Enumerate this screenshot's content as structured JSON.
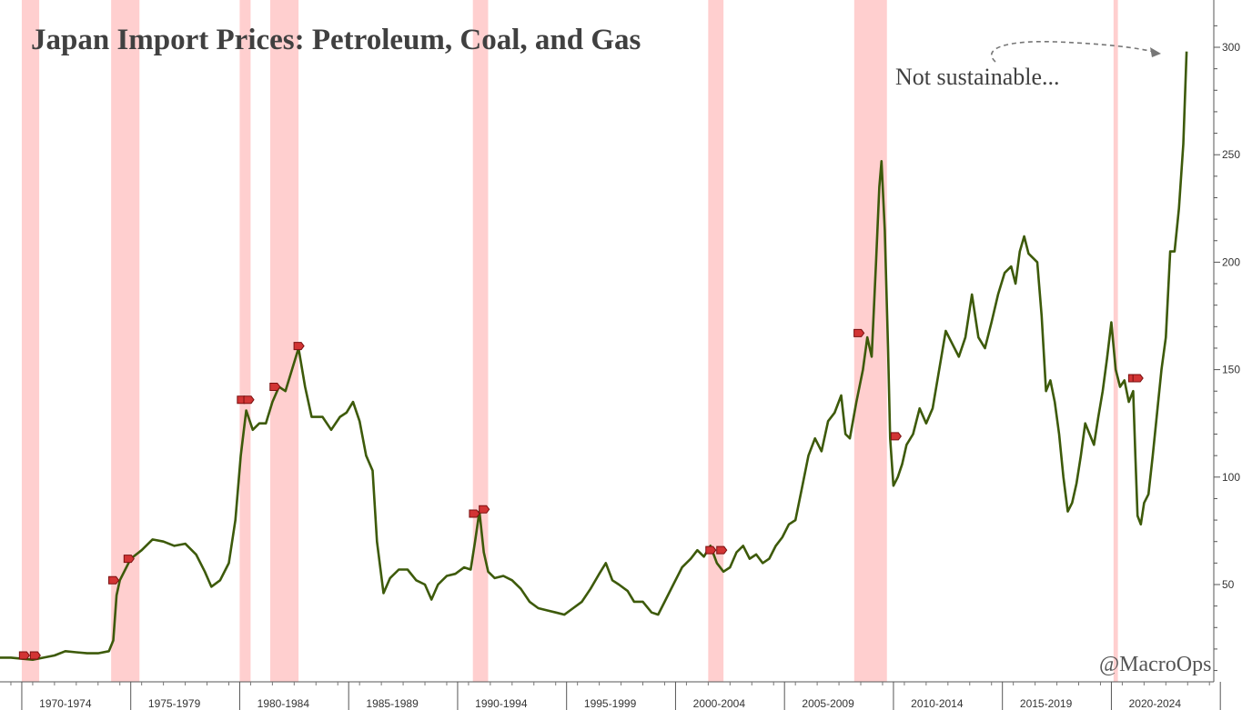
{
  "chart_data": {
    "type": "line",
    "title": "Japan Import Prices: Petroleum, Coal, and Gas",
    "annotation": "Not sustainable...",
    "credit": "@MacroOps",
    "ylim": [
      0,
      310
    ],
    "xlim": [
      1967.5,
      2023.2
    ],
    "y_ticks": [
      50,
      100,
      150,
      200,
      250,
      300
    ],
    "y_tick_labels": [
      "50",
      "100",
      "150",
      "200",
      "250",
      "300"
    ],
    "x_tick_labels": [
      {
        "label": "1970-1974",
        "x": 1970.5
      },
      {
        "label": "1975-1979",
        "x": 1975.5
      },
      {
        "label": "1980-1984",
        "x": 1980.5
      },
      {
        "label": "1985-1989",
        "x": 1985.5
      },
      {
        "label": "1990-1994",
        "x": 1990.5
      },
      {
        "label": "1995-1999",
        "x": 1995.5
      },
      {
        "label": "2000-2004",
        "x": 2000.5
      },
      {
        "label": "2005-2009",
        "x": 2005.5
      },
      {
        "label": "2010-2014",
        "x": 2010.5
      },
      {
        "label": "2015-2019",
        "x": 2015.5
      },
      {
        "label": "2020-2024",
        "x": 2020.5
      }
    ],
    "x_group_boundaries": [
      1968.5,
      1973.5,
      1978.5,
      1983.5,
      1988.5,
      1993.5,
      1998.5,
      2003.5,
      2008.5,
      2013.5,
      2018.5,
      2023.5
    ],
    "recession_bands": [
      [
        1968.5,
        1969.3
      ],
      [
        1972.6,
        1973.9
      ],
      [
        1978.5,
        1979.0
      ],
      [
        1979.9,
        1981.2
      ],
      [
        1989.2,
        1989.9
      ],
      [
        2000.0,
        2000.7
      ],
      [
        2006.7,
        2008.2
      ],
      [
        2018.6,
        2018.8
      ]
    ],
    "series": [
      {
        "line_color": "#3d5a0a",
        "points": [
          [
            1967.5,
            16
          ],
          [
            1968.0,
            16
          ],
          [
            1968.5,
            15.5
          ],
          [
            1969.0,
            15
          ],
          [
            1969.5,
            16
          ],
          [
            1970.0,
            17
          ],
          [
            1970.5,
            19
          ],
          [
            1971.0,
            18.5
          ],
          [
            1971.5,
            18
          ],
          [
            1972.0,
            18
          ],
          [
            1972.5,
            19
          ],
          [
            1972.7,
            24
          ],
          [
            1972.85,
            45
          ],
          [
            1973.0,
            52
          ],
          [
            1973.5,
            62
          ],
          [
            1974.0,
            66
          ],
          [
            1974.5,
            71
          ],
          [
            1975.0,
            70
          ],
          [
            1975.5,
            68
          ],
          [
            1976.0,
            69
          ],
          [
            1976.5,
            64
          ],
          [
            1976.9,
            56
          ],
          [
            1977.2,
            49
          ],
          [
            1977.6,
            52
          ],
          [
            1978.0,
            60
          ],
          [
            1978.3,
            80
          ],
          [
            1978.55,
            110
          ],
          [
            1978.8,
            131
          ],
          [
            1979.1,
            122
          ],
          [
            1979.4,
            125
          ],
          [
            1979.7,
            125
          ],
          [
            1980.0,
            135
          ],
          [
            1980.3,
            142
          ],
          [
            1980.6,
            140
          ],
          [
            1980.9,
            150
          ],
          [
            1981.2,
            160
          ],
          [
            1981.5,
            142
          ],
          [
            1981.8,
            128
          ],
          [
            1982.3,
            128
          ],
          [
            1982.7,
            122
          ],
          [
            1983.1,
            128
          ],
          [
            1983.4,
            130
          ],
          [
            1983.7,
            135
          ],
          [
            1984.0,
            126
          ],
          [
            1984.3,
            110
          ],
          [
            1984.6,
            103
          ],
          [
            1984.8,
            70
          ],
          [
            1985.1,
            46
          ],
          [
            1985.4,
            53
          ],
          [
            1985.8,
            57
          ],
          [
            1986.2,
            57
          ],
          [
            1986.6,
            52
          ],
          [
            1987.0,
            50
          ],
          [
            1987.3,
            43
          ],
          [
            1987.6,
            50
          ],
          [
            1988.0,
            54
          ],
          [
            1988.4,
            55
          ],
          [
            1988.8,
            58
          ],
          [
            1989.1,
            57
          ],
          [
            1989.3,
            70
          ],
          [
            1989.5,
            84
          ],
          [
            1989.7,
            65
          ],
          [
            1989.9,
            56
          ],
          [
            1990.2,
            53
          ],
          [
            1990.6,
            54
          ],
          [
            1991.0,
            52
          ],
          [
            1991.4,
            48
          ],
          [
            1991.8,
            42
          ],
          [
            1992.2,
            39
          ],
          [
            1992.6,
            38
          ],
          [
            1993.0,
            37
          ],
          [
            1993.4,
            36
          ],
          [
            1993.8,
            39
          ],
          [
            1994.2,
            42
          ],
          [
            1994.6,
            48
          ],
          [
            1995.0,
            55
          ],
          [
            1995.3,
            60
          ],
          [
            1995.6,
            52
          ],
          [
            1995.9,
            50
          ],
          [
            1996.3,
            47
          ],
          [
            1996.6,
            42
          ],
          [
            1997.0,
            42
          ],
          [
            1997.4,
            37
          ],
          [
            1997.7,
            36
          ],
          [
            1998.0,
            42
          ],
          [
            1998.4,
            50
          ],
          [
            1998.8,
            58
          ],
          [
            1999.2,
            62
          ],
          [
            1999.5,
            66
          ],
          [
            1999.8,
            63
          ],
          [
            2000.1,
            68
          ],
          [
            2000.4,
            60
          ],
          [
            2000.7,
            56
          ],
          [
            2001.0,
            58
          ],
          [
            2001.3,
            65
          ],
          [
            2001.6,
            68
          ],
          [
            2001.9,
            62
          ],
          [
            2002.2,
            64
          ],
          [
            2002.5,
            60
          ],
          [
            2002.8,
            62
          ],
          [
            2003.1,
            68
          ],
          [
            2003.4,
            72
          ],
          [
            2003.7,
            78
          ],
          [
            2004.0,
            80
          ],
          [
            2004.3,
            95
          ],
          [
            2004.6,
            110
          ],
          [
            2004.9,
            118
          ],
          [
            2005.2,
            112
          ],
          [
            2005.5,
            126
          ],
          [
            2005.8,
            130
          ],
          [
            2006.1,
            138
          ],
          [
            2006.3,
            120
          ],
          [
            2006.5,
            118
          ],
          [
            2006.8,
            135
          ],
          [
            2007.1,
            150
          ],
          [
            2007.3,
            165
          ],
          [
            2007.5,
            156
          ],
          [
            2007.7,
            200
          ],
          [
            2007.85,
            235
          ],
          [
            2007.95,
            247
          ],
          [
            2008.1,
            215
          ],
          [
            2008.25,
            160
          ],
          [
            2008.35,
            118
          ],
          [
            2008.5,
            96
          ],
          [
            2008.7,
            100
          ],
          [
            2008.9,
            106
          ],
          [
            2009.1,
            115
          ],
          [
            2009.4,
            120
          ],
          [
            2009.7,
            132
          ],
          [
            2010.0,
            125
          ],
          [
            2010.3,
            132
          ],
          [
            2010.6,
            150
          ],
          [
            2010.9,
            168
          ],
          [
            2011.2,
            162
          ],
          [
            2011.5,
            156
          ],
          [
            2011.8,
            165
          ],
          [
            2012.1,
            185
          ],
          [
            2012.4,
            165
          ],
          [
            2012.7,
            160
          ],
          [
            2013.0,
            172
          ],
          [
            2013.3,
            185
          ],
          [
            2013.6,
            195
          ],
          [
            2013.9,
            198
          ],
          [
            2014.1,
            190
          ],
          [
            2014.3,
            205
          ],
          [
            2014.5,
            212
          ],
          [
            2014.7,
            204
          ],
          [
            2014.9,
            202
          ],
          [
            2015.1,
            200
          ],
          [
            2015.3,
            175
          ],
          [
            2015.5,
            140
          ],
          [
            2015.7,
            145
          ],
          [
            2015.9,
            135
          ],
          [
            2016.1,
            120
          ],
          [
            2016.3,
            100
          ],
          [
            2016.5,
            84
          ],
          [
            2016.7,
            88
          ],
          [
            2016.9,
            97
          ],
          [
            2017.1,
            110
          ],
          [
            2017.3,
            125
          ],
          [
            2017.5,
            120
          ],
          [
            2017.7,
            115
          ],
          [
            2017.9,
            128
          ],
          [
            2018.1,
            140
          ],
          [
            2018.3,
            155
          ],
          [
            2018.5,
            172
          ],
          [
            2018.7,
            150
          ],
          [
            2018.9,
            142
          ],
          [
            2019.1,
            145
          ],
          [
            2019.3,
            135
          ],
          [
            2019.5,
            140
          ],
          [
            2019.6,
            110
          ],
          [
            2019.7,
            82
          ],
          [
            2019.85,
            78
          ],
          [
            2020.0,
            88
          ],
          [
            2020.2,
            92
          ],
          [
            2020.4,
            110
          ],
          [
            2020.6,
            130
          ],
          [
            2020.8,
            150
          ],
          [
            2021.0,
            165
          ],
          [
            2021.2,
            205
          ],
          [
            2021.4,
            205
          ],
          [
            2021.6,
            225
          ],
          [
            2021.8,
            255
          ],
          [
            2021.95,
            298
          ]
        ]
      }
    ],
    "event_markers": [
      [
        1968.6,
        17
      ],
      [
        1969.1,
        17
      ],
      [
        1972.7,
        52
      ],
      [
        1973.4,
        62
      ],
      [
        1978.6,
        136
      ],
      [
        1978.9,
        136
      ],
      [
        1980.1,
        142
      ],
      [
        1981.2,
        161
      ],
      [
        1989.25,
        83
      ],
      [
        1989.7,
        85
      ],
      [
        2000.1,
        66
      ],
      [
        2000.6,
        66
      ],
      [
        2006.9,
        167
      ],
      [
        2008.6,
        119
      ],
      [
        2019.5,
        146
      ],
      [
        2019.7,
        146
      ]
    ]
  }
}
